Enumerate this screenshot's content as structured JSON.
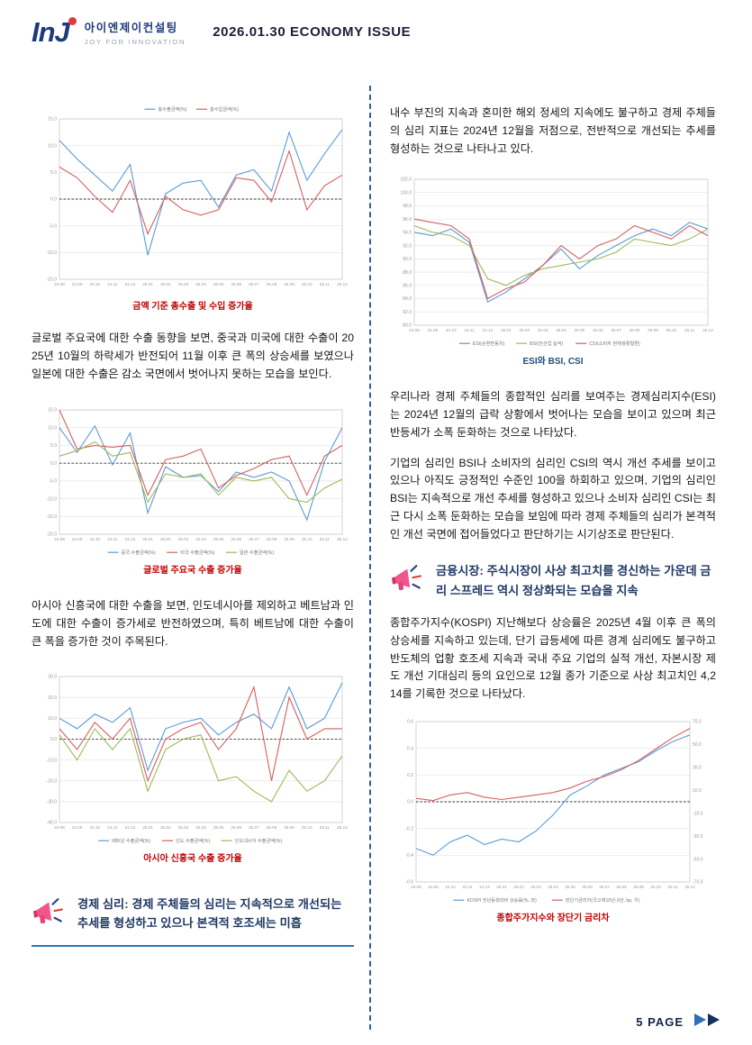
{
  "header": {
    "logo_mark": "InJ",
    "logo_korean": "아이엔제이컨설팅",
    "logo_subtitle": "JOY FOR INNOVATION",
    "title": "2026.01.30 ECONOMY ISSUE"
  },
  "left": {
    "para1": "글로벌 주요국에 대한 수출 동향을 보면, 중국과 미국에 대한 수출이 2025년 10월의 하락세가 반전되어 11월 이후 큰 폭의 상승세를 보였으나 일본에 대한 수출은 감소 국면에서 벗어나지 못하는 모습을 보인다.",
    "para2": "아시아 신흥국에 대한 수출을 보면, 인도네시아를 제외하고 베트남과 인도에 대한 수출이 증가세로 반전하였으며, 특히 베트남에 대한 수출이 큰 폭을 증가한 것이 주목된다.",
    "heading": "경제 심리: 경제 주체들의 심리는 지속적으로 개선되는 추세를 형성하고 있으나 본격적 호조세는 미흡"
  },
  "right": {
    "para1": "내수 부진의 지속과 혼미한 해외 정세의 지속에도 불구하고 경제 주체들의 심리 지표는 2024년 12월을 저점으로, 전반적으로 개선되는 추세를 형성하는 것으로 나타나고 있다.",
    "para2": "우리나라 경제 주체들의 종합적인 심리를 보여주는 경제심리지수(ESI)는 2024년 12월의 급락 상황에서 벗어나는 모습을 보이고 있으며 최근 반등세가 소폭 둔화하는 것으로 나타났다.",
    "para3": "기업의 심리인 BSI나 소비자의 심리인 CSI의 역시 개선 추세를 보이고 있으나 아직도 긍정적인 수준인 100을 하회하고 있으며, 기업의 심리인 BSI는 지속적으로 개선 추세를 형성하고 있으나 소비자 심리인 CSI는 최근 다시 소폭 둔화하는 모습을 보임에 따라 경제 주체들의 심리가 본격적인 개선 국면에 접어들었다고 판단하기는 시기상조로 판단된다.",
    "heading": "금융시장: 주식시장이 사상 최고치를 경신하는 가운데 금리 스프레드 역시 정상화되는 모습을 지속",
    "para4": "종합주가지수(KOSPI) 지난해보다 상승률은 2025년 4월 이후 큰 폭의 상승세를 지속하고 있는데, 단기 급등세에 따른 경계 심리에도 불구하고 반도체의 업황 호조세 지속과 국내 주요 기업의 실적 개선, 자본시장 제도 개선 기대심리 등의 요인으로 12월 종가 기준으로 사상 최고치인 4,214를 기록한 것으로 나타났다."
  },
  "footer": {
    "page_label": "5 PAGE"
  },
  "colors": {
    "accent_navy": "#1f3864",
    "caption_red": "#c00000",
    "caption_navy": "#1f4e79",
    "divider_blue": "#2f5ea8"
  },
  "chart_data": [
    {
      "type": "line",
      "title": "금액 기준 총수출 및 수입 증가율",
      "title_color": "#c00000",
      "legend_position": "top",
      "zero_line": true,
      "grid": true,
      "ylim": [
        -15,
        15
      ],
      "ystep": 5,
      "categories": [
        "24.08",
        "24.09",
        "24.10",
        "24.11",
        "24.12",
        "25.01",
        "25.02",
        "25.03",
        "25.04",
        "25.05",
        "25.06",
        "25.07",
        "25.08",
        "25.09",
        "25.10",
        "25.11",
        "25.12"
      ],
      "series": [
        {
          "name": "총수출금액(%)",
          "color": "#5b9bd5",
          "values": [
            11.0,
            7.5,
            4.5,
            1.5,
            6.5,
            -10.5,
            1.0,
            3.0,
            3.5,
            -1.5,
            4.5,
            5.5,
            1.5,
            12.5,
            3.5,
            8.5,
            13.0
          ]
        },
        {
          "name": "총수입금액(%)",
          "color": "#d65f5f",
          "values": [
            6.0,
            4.0,
            0.5,
            -2.5,
            3.5,
            -6.5,
            0.5,
            -2.0,
            -3.0,
            -2.0,
            4.0,
            3.5,
            -0.5,
            9.0,
            -2.0,
            2.5,
            4.5
          ]
        }
      ]
    },
    {
      "type": "line",
      "title": "글로벌 주요국 수출 증가율",
      "title_color": "#c00000",
      "legend_position": "bottom",
      "zero_line": true,
      "grid": true,
      "ylim": [
        -20,
        15
      ],
      "ystep": 5,
      "categories": [
        "24.08",
        "24.09",
        "24.10",
        "24.11",
        "24.12",
        "25.01",
        "25.02",
        "25.03",
        "25.04",
        "25.05",
        "25.06",
        "25.07",
        "25.08",
        "25.09",
        "25.10",
        "25.11",
        "25.12"
      ],
      "series": [
        {
          "name": "중국 수출금액(%)",
          "color": "#5b9bd5",
          "values": [
            10.0,
            3.0,
            10.5,
            -0.5,
            8.5,
            -14.0,
            -1.0,
            -4.0,
            -3.5,
            -8.0,
            -2.5,
            -4.0,
            -2.5,
            -5.0,
            -16.0,
            0.5,
            10.0
          ]
        },
        {
          "name": "미국 수출금액(%)",
          "color": "#d65f5f",
          "values": [
            15.0,
            4.0,
            5.0,
            4.5,
            5.0,
            -9.0,
            1.0,
            2.0,
            4.0,
            -7.0,
            -3.5,
            -1.5,
            1.0,
            2.0,
            -9.0,
            2.0,
            5.0
          ]
        },
        {
          "name": "일본 수출금액(%)",
          "color": "#9bbb59",
          "values": [
            2.0,
            3.5,
            6.0,
            2.0,
            3.0,
            -11.0,
            -3.0,
            -4.0,
            -3.0,
            -9.0,
            -4.0,
            -5.0,
            -4.0,
            -10.0,
            -11.0,
            -7.0,
            -4.5
          ]
        }
      ]
    },
    {
      "type": "line",
      "title": "아시아 신흥국 수출 증가율",
      "title_color": "#c00000",
      "legend_position": "bottom",
      "zero_line": true,
      "grid": true,
      "ylim": [
        -40,
        30
      ],
      "ystep": 10,
      "categories": [
        "24.08",
        "24.09",
        "24.10",
        "24.11",
        "24.12",
        "25.01",
        "25.02",
        "25.03",
        "25.04",
        "25.05",
        "25.06",
        "25.07",
        "25.08",
        "25.09",
        "25.10",
        "25.11",
        "25.12"
      ],
      "series": [
        {
          "name": "베트남 수출금액(%)",
          "color": "#5b9bd5",
          "values": [
            10,
            5,
            12,
            8,
            15,
            -15,
            5,
            8,
            10,
            2,
            8,
            12,
            5,
            25,
            5,
            10,
            27
          ]
        },
        {
          "name": "인도 수출금액(%)",
          "color": "#d65f5f",
          "values": [
            5,
            -5,
            8,
            0,
            10,
            -20,
            0,
            5,
            8,
            -5,
            5,
            25,
            -20,
            20,
            0,
            5,
            5
          ]
        },
        {
          "name": "인도네시아 수출금액(%)",
          "color": "#9bbb59",
          "values": [
            2,
            -10,
            5,
            -5,
            5,
            -25,
            -5,
            0,
            2,
            -20,
            -18,
            -25,
            -30,
            -15,
            -25,
            -20,
            -8
          ]
        }
      ]
    },
    {
      "type": "line",
      "title": "ESI와 BSI, CSI",
      "title_color": "#1f4e79",
      "legend_position": "bottom",
      "zero_line": false,
      "grid": true,
      "ylim": [
        80,
        102
      ],
      "ystep": 2,
      "categories": [
        "24.08",
        "24.09",
        "24.10",
        "24.11",
        "24.12",
        "25.01",
        "25.02",
        "25.03",
        "25.04",
        "25.05",
        "25.06",
        "25.07",
        "25.08",
        "25.09",
        "25.10",
        "25.11",
        "25.12"
      ],
      "series": [
        {
          "name": "ESI(순환변동치)",
          "color": "#5b9bd5",
          "values": [
            94.0,
            93.5,
            94.5,
            92.5,
            83.5,
            85.0,
            87.0,
            89.0,
            91.5,
            88.5,
            90.5,
            92.0,
            93.5,
            94.5,
            93.5,
            95.5,
            94.5
          ]
        },
        {
          "name": "BSI(전산업 실적)",
          "color": "#9bbb59",
          "values": [
            95.0,
            94.0,
            93.5,
            92.0,
            87.0,
            86.0,
            87.5,
            88.5,
            89.0,
            89.5,
            90.0,
            91.0,
            93.0,
            92.5,
            92.0,
            93.0,
            94.5
          ]
        },
        {
          "name": "CSI(소비자 현재생활형편)",
          "color": "#d65f5f",
          "values": [
            96.0,
            95.5,
            95.0,
            93.0,
            84.0,
            85.5,
            86.5,
            89.0,
            92.0,
            90.0,
            92.0,
            93.0,
            95.0,
            94.0,
            93.0,
            95.0,
            93.5
          ]
        }
      ]
    },
    {
      "type": "line",
      "title": "종합주가지수와 장단기 금리차",
      "title_color": "#c00000",
      "legend_position": "bottom",
      "zero_line": true,
      "grid": true,
      "ylim": [
        -0.6,
        0.6
      ],
      "ystep": 0.2,
      "ylim_right": [
        -70,
        70
      ],
      "ystep_right": 20,
      "categories": [
        "24.08",
        "24.09",
        "24.10",
        "24.11",
        "24.12",
        "25.01",
        "25.02",
        "25.03",
        "25.04",
        "25.05",
        "25.06",
        "25.07",
        "25.08",
        "25.09",
        "25.10",
        "25.11",
        "25.12"
      ],
      "series": [
        {
          "name": "KOSPI 전년동월대비 상승률(%, 좌)",
          "color": "#5b9bd5",
          "axis": "left",
          "values": [
            -0.35,
            -0.4,
            -0.3,
            -0.25,
            -0.32,
            -0.28,
            -0.3,
            -0.22,
            -0.1,
            0.05,
            0.12,
            0.2,
            0.25,
            0.3,
            0.38,
            0.45,
            0.5
          ]
        },
        {
          "name": "장단기금리차(국고채10년-3년, bp, 우)",
          "color": "#d65f5f",
          "axis": "right",
          "values": [
            3,
            1,
            6,
            8,
            4,
            2,
            4,
            6,
            8,
            12,
            18,
            22,
            28,
            36,
            46,
            56,
            64
          ]
        }
      ]
    }
  ]
}
